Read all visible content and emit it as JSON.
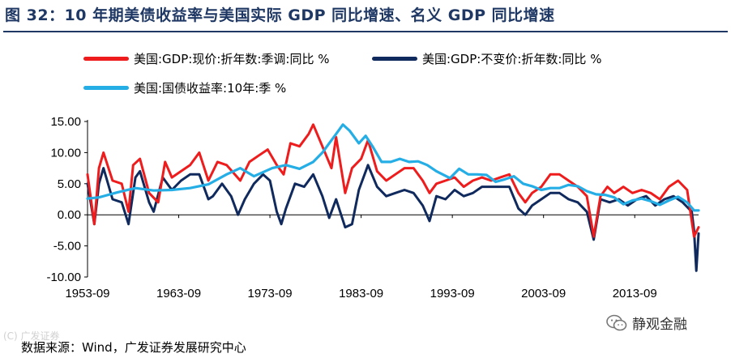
{
  "title": "图 32：10 年期美债收益率与美国实际 GDP 同比增速、名义 GDP 同比增速",
  "source": "数据来源：Wind，广发证券发展研究中心",
  "watermark_left": "(C) 广发证券",
  "brand": {
    "name": "静观金融",
    "icon": "wechat-icon"
  },
  "colors": {
    "nominal": "#ee1c1c",
    "real": "#102a5e",
    "yield": "#25aee5"
  },
  "chart_data": {
    "type": "line",
    "title": "",
    "xlabel": "",
    "ylabel": "",
    "ylim": [
      -10,
      15
    ],
    "yticks": [
      "15.00",
      "10.00",
      "5.00",
      "0.00",
      "-5.00",
      "-10.00"
    ],
    "ytick_values": [
      15,
      10,
      5,
      0,
      -5,
      -10
    ],
    "xticks": [
      "1953-09",
      "1963-09",
      "1973-09",
      "1983-09",
      "1993-09",
      "2003-09",
      "2013-09"
    ],
    "xtick_values": [
      1953.75,
      1963.75,
      1973.75,
      1983.75,
      1993.75,
      2003.75,
      2013.75
    ],
    "xlim": [
      1953.75,
      2020.75
    ],
    "legend_position": "top",
    "series": [
      {
        "name": "美国:GDP:现价:折年数:季调:同比 %",
        "key": "nominal",
        "x": [
          1953.75,
          1954.5,
          1955.0,
          1955.5,
          1956.5,
          1957.5,
          1958.25,
          1958.75,
          1959.5,
          1960.5,
          1961.5,
          1962.25,
          1963.0,
          1964.0,
          1965.0,
          1966.0,
          1967.0,
          1968.0,
          1969.0,
          1970.5,
          1971.5,
          1972.5,
          1973.5,
          1974.5,
          1975.25,
          1976.0,
          1977.0,
          1978.0,
          1978.5,
          1979.5,
          1980.5,
          1981.0,
          1982.0,
          1982.75,
          1983.75,
          1984.5,
          1985.5,
          1986.5,
          1987.5,
          1988.5,
          1989.5,
          1990.5,
          1991.25,
          1992.0,
          1993.0,
          1994.0,
          1995.0,
          1996.0,
          1997.0,
          1998.0,
          1999.0,
          2000.0,
          2001.0,
          2001.75,
          2002.5,
          2003.5,
          2004.5,
          2005.5,
          2006.5,
          2007.5,
          2008.5,
          2009.25,
          2010.0,
          2010.75,
          2011.5,
          2012.5,
          2013.5,
          2014.5,
          2015.5,
          2016.5,
          2017.5,
          2018.5,
          2019.5,
          2020.25,
          2020.75
        ],
        "values": [
          6.5,
          -1.5,
          7.5,
          10.0,
          5.5,
          5.0,
          0.5,
          8.0,
          9.0,
          3.5,
          2.0,
          8.5,
          6.0,
          7.0,
          8.0,
          10.0,
          5.5,
          8.5,
          8.0,
          5.5,
          8.5,
          9.5,
          10.5,
          8.0,
          6.5,
          11.5,
          11.0,
          13.0,
          14.5,
          11.0,
          7.5,
          12.5,
          3.5,
          7.5,
          9.0,
          12.0,
          7.0,
          5.5,
          6.5,
          7.5,
          7.5,
          5.5,
          3.5,
          5.0,
          5.5,
          6.0,
          4.5,
          5.5,
          6.0,
          5.5,
          6.0,
          6.5,
          3.5,
          2.0,
          3.5,
          4.5,
          6.5,
          6.5,
          5.5,
          4.5,
          3.0,
          -3.5,
          3.0,
          4.5,
          3.5,
          4.5,
          3.5,
          4.0,
          3.5,
          2.5,
          4.5,
          5.5,
          4.0,
          -3.5,
          -2.0
        ]
      },
      {
        "name": "美国:GDP:不变价:折年数:同比 %",
        "key": "real",
        "x": [
          1953.75,
          1954.5,
          1955.0,
          1955.5,
          1956.5,
          1957.5,
          1958.25,
          1959.0,
          1959.5,
          1960.5,
          1961.0,
          1962.0,
          1963.0,
          1964.0,
          1965.0,
          1966.0,
          1967.0,
          1967.5,
          1968.5,
          1969.5,
          1970.25,
          1971.0,
          1972.0,
          1973.0,
          1973.75,
          1974.5,
          1975.0,
          1975.5,
          1976.5,
          1977.5,
          1978.5,
          1979.5,
          1980.25,
          1981.0,
          1982.0,
          1982.75,
          1983.5,
          1984.5,
          1985.5,
          1986.5,
          1987.5,
          1988.5,
          1989.5,
          1990.5,
          1991.25,
          1992.0,
          1993.0,
          1994.0,
          1995.0,
          1996.0,
          1997.0,
          1998.0,
          1999.0,
          2000.0,
          2001.0,
          2001.75,
          2002.5,
          2003.5,
          2004.5,
          2005.5,
          2006.5,
          2007.5,
          2008.5,
          2009.25,
          2010.0,
          2011.0,
          2012.0,
          2013.0,
          2014.0,
          2015.0,
          2016.0,
          2017.0,
          2018.0,
          2019.0,
          2020.0,
          2020.25,
          2020.5,
          2020.75
        ],
        "values": [
          5.0,
          -1.5,
          5.0,
          7.5,
          2.5,
          2.0,
          -1.5,
          6.0,
          7.0,
          2.0,
          0.5,
          6.0,
          4.0,
          5.5,
          6.5,
          6.5,
          2.5,
          3.0,
          5.0,
          3.0,
          0.0,
          2.5,
          5.0,
          6.5,
          5.5,
          0.5,
          -1.5,
          1.0,
          5.0,
          4.5,
          6.5,
          3.0,
          -0.5,
          2.5,
          -2.0,
          -1.5,
          4.0,
          8.0,
          4.5,
          3.0,
          3.5,
          4.0,
          3.5,
          1.5,
          -1.0,
          3.0,
          2.5,
          4.0,
          3.0,
          3.5,
          4.5,
          4.5,
          4.5,
          4.5,
          1.0,
          0.0,
          1.5,
          2.5,
          3.5,
          3.5,
          2.5,
          2.0,
          0.5,
          -4.0,
          2.5,
          2.0,
          2.5,
          1.5,
          2.5,
          3.0,
          1.5,
          2.5,
          3.0,
          2.0,
          0.5,
          -2.5,
          -9.0,
          -3.0
        ]
      },
      {
        "name": "美国:国债收益率:10年:季 %",
        "key": "yield",
        "x": [
          1953.75,
          1955.0,
          1957.0,
          1959.0,
          1961.0,
          1963.0,
          1965.0,
          1967.0,
          1969.0,
          1970.5,
          1972.0,
          1974.0,
          1975.5,
          1977.0,
          1978.5,
          1979.5,
          1980.25,
          1981.0,
          1981.75,
          1982.5,
          1983.5,
          1984.25,
          1985.0,
          1986.0,
          1987.0,
          1988.0,
          1989.0,
          1990.0,
          1991.0,
          1992.0,
          1993.5,
          1994.5,
          1995.5,
          1996.5,
          1997.5,
          1998.5,
          1999.5,
          2000.5,
          2001.5,
          2002.5,
          2003.5,
          2004.5,
          2005.5,
          2006.5,
          2007.5,
          2008.5,
          2009.5,
          2010.5,
          2011.5,
          2012.5,
          2013.5,
          2014.5,
          2015.5,
          2016.5,
          2017.5,
          2018.5,
          2019.5,
          2020.25,
          2020.75
        ],
        "values": [
          2.6,
          2.8,
          3.6,
          4.3,
          3.9,
          4.0,
          4.3,
          4.9,
          6.5,
          7.5,
          6.2,
          7.5,
          8.0,
          7.4,
          8.5,
          10.0,
          11.5,
          13.0,
          14.5,
          13.5,
          11.5,
          12.7,
          11.0,
          8.5,
          8.5,
          9.0,
          8.5,
          8.6,
          8.0,
          7.0,
          5.9,
          7.4,
          6.5,
          6.5,
          6.4,
          5.3,
          5.7,
          6.2,
          5.0,
          4.6,
          4.0,
          4.3,
          4.3,
          4.8,
          4.6,
          3.8,
          3.3,
          3.2,
          2.8,
          1.7,
          2.3,
          2.6,
          2.2,
          1.6,
          2.3,
          2.9,
          2.0,
          0.7,
          0.7
        ]
      }
    ]
  }
}
